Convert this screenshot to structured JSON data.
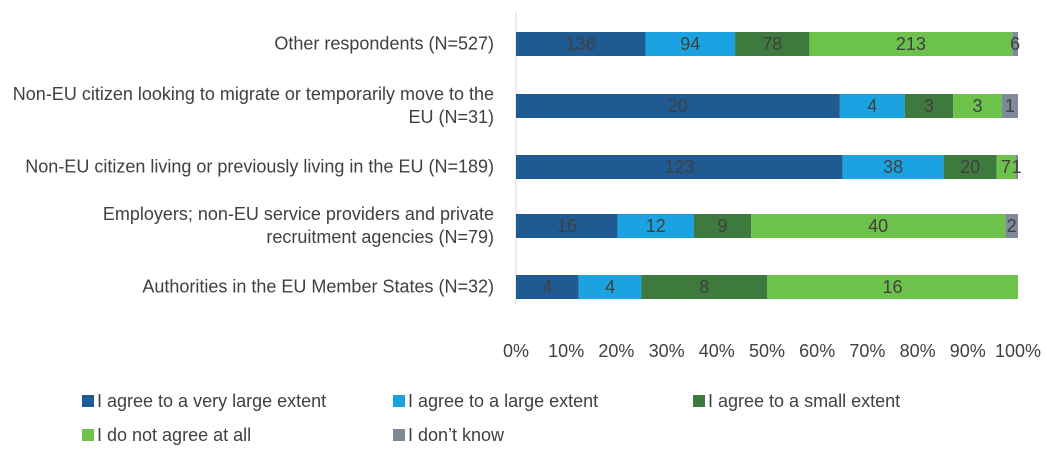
{
  "chart_data": {
    "type": "bar",
    "orientation": "horizontal",
    "stacking": "percent",
    "categories": [
      "Other respondents (N=527)",
      "Non-EU citizen looking to migrate or temporarily move to the EU (N=31)",
      "Non-EU citizen living or previously living in the EU (N=189)",
      "Employers; non-EU service providers and private recruitment agencies (N=79)",
      "Authorities in the EU Member States (N=32)"
    ],
    "series": [
      {
        "name": "I agree to a very large extent",
        "color": "#1f5b92",
        "values": [
          136,
          20,
          123,
          16,
          4
        ]
      },
      {
        "name": "I agree to a large extent",
        "color": "#1aa3e0",
        "values": [
          94,
          4,
          38,
          12,
          4
        ]
      },
      {
        "name": "I agree to a small extent",
        "color": "#3e7a3e",
        "values": [
          78,
          3,
          20,
          9,
          8
        ]
      },
      {
        "name": "I do not agree at all",
        "color": "#6cc24a",
        "values": [
          213,
          3,
          7,
          40,
          16
        ]
      },
      {
        "name": "I don’t know",
        "color": "#7f8a99",
        "values": [
          6,
          1,
          1,
          2,
          0
        ]
      }
    ],
    "xlim": [
      0,
      100
    ],
    "xticks": [
      {
        "value": 0,
        "label": "0%"
      },
      {
        "value": 10,
        "label": "10%"
      },
      {
        "value": 20,
        "label": "20%"
      },
      {
        "value": 30,
        "label": "30%"
      },
      {
        "value": 40,
        "label": "40%"
      },
      {
        "value": 50,
        "label": "50%"
      },
      {
        "value": 60,
        "label": "60%"
      },
      {
        "value": 70,
        "label": "70%"
      },
      {
        "value": 80,
        "label": "80%"
      },
      {
        "value": 90,
        "label": "90%"
      },
      {
        "value": 100,
        "label": "100%"
      }
    ],
    "legend": "bottom"
  }
}
